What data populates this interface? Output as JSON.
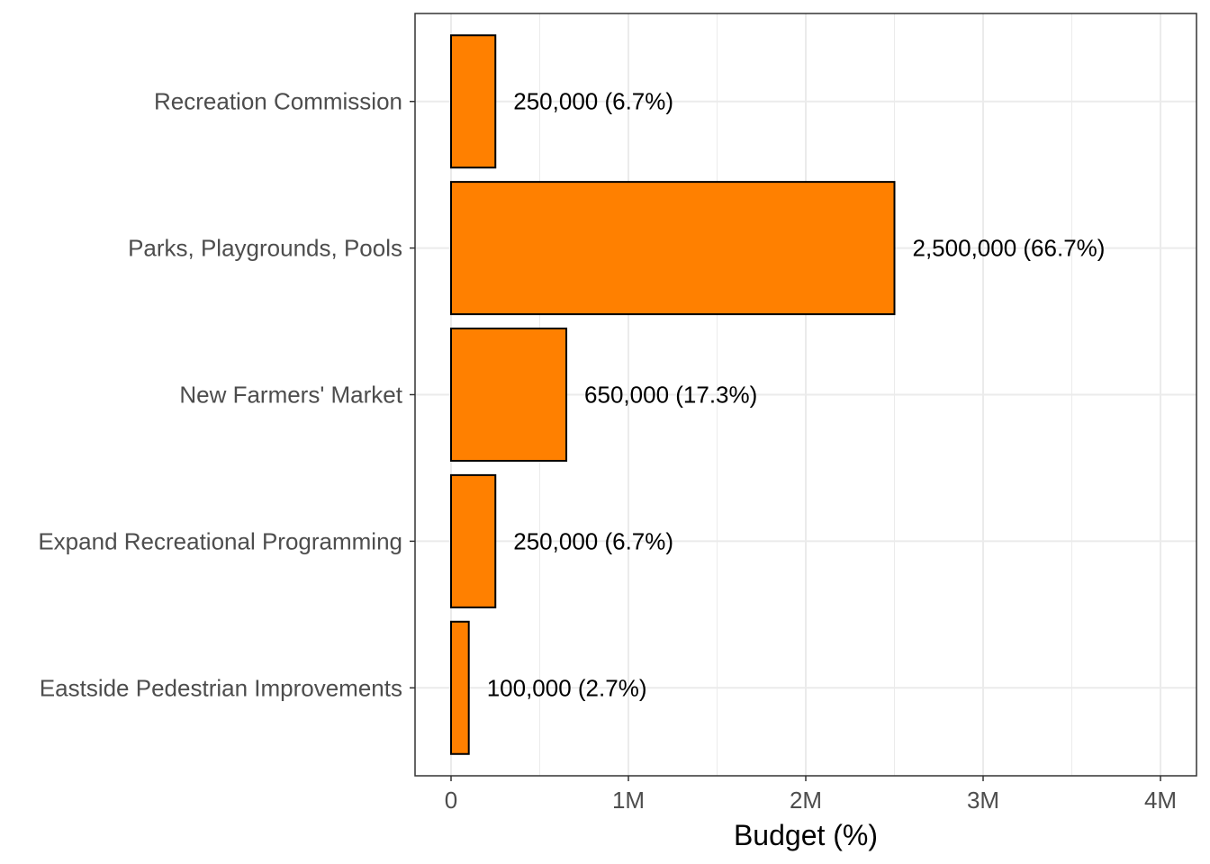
{
  "chart_data": {
    "type": "bar",
    "orientation": "horizontal",
    "categories": [
      "Recreation Commission",
      "Parks, Playgrounds, Pools",
      "New Farmers' Market",
      "Expand Recreational Programming",
      "Eastside Pedestrian Improvements"
    ],
    "values": [
      250000,
      2500000,
      650000,
      250000,
      100000
    ],
    "data_labels": [
      "250,000 (6.7%)",
      "2,500,000 (66.7%)",
      "650,000 (17.3%)",
      "250,000 (6.7%)",
      "100,000 (2.7%)"
    ],
    "xlabel": "Budget (%)",
    "ylabel": "",
    "xlim": [
      0,
      4000000
    ],
    "x_ticks": [
      0,
      1000000,
      2000000,
      3000000,
      4000000
    ],
    "x_tick_labels": [
      "0",
      "1M",
      "2M",
      "3M",
      "4M"
    ],
    "grid": true,
    "bar_color": "#FF8000",
    "bar_edge_color": "#000000",
    "grid_color": "#EBEBEB",
    "panel_border_color": "#333333"
  }
}
